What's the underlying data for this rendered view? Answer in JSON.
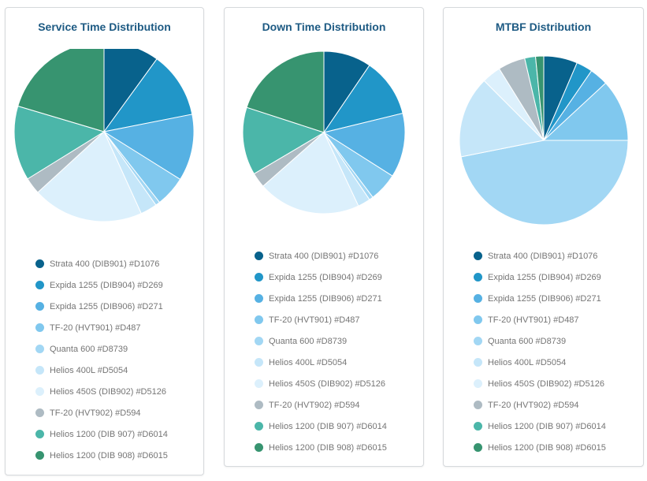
{
  "legend_items": [
    {
      "label": "Strata 400 (DIB901) #D1076",
      "color": "#08628c"
    },
    {
      "label": "Expida 1255 (DIB904) #D269",
      "color": "#2196c8"
    },
    {
      "label": "Expida 1255 (DIB906) #D271",
      "color": "#56b1e3"
    },
    {
      "label": "TF-20 (HVT901) #D487",
      "color": "#80c8ee"
    },
    {
      "label": "Quanta 600 #D8739",
      "color": "#a2d7f4"
    },
    {
      "label": "Helios 400L #D5054",
      "color": "#c5e6f9"
    },
    {
      "label": "Helios 450S (DIB902) #D5126",
      "color": "#dcf0fc"
    },
    {
      "label": "TF-20 (HVT902) #D594",
      "color": "#aebbc3"
    },
    {
      "label": "Helios 1200 (DIB 907) #D6014",
      "color": "#4bb6a9"
    },
    {
      "label": "Helios 1200 (DIB 908) #D6015",
      "color": "#379470"
    }
  ],
  "chart_data": [
    {
      "type": "pie",
      "title": "Service Time Distribution",
      "categories": [
        "Strata 400 (DIB901) #D1076",
        "Expida 1255 (DIB904) #D269",
        "Expida 1255 (DIB906) #D271",
        "TF-20 (HVT901) #D487",
        "Quanta 600 #D8739",
        "Helios 400L #D5054",
        "Helios 450S (DIB902) #D5126",
        "TF-20 (HVT902) #D594",
        "Helios 1200 (DIB 907) #D6014",
        "Helios 1200 (DIB 908) #D6015"
      ],
      "values": [
        10.0,
        11.9,
        12.0,
        5.5,
        0.8,
        3.0,
        20.0,
        3.0,
        13.4,
        20.4
      ],
      "legend": "bottom"
    },
    {
      "type": "pie",
      "title": "Down Time Distribution",
      "categories": [
        "Strata 400 (DIB901) #D1076",
        "Expida 1255 (DIB904) #D269",
        "Expida 1255 (DIB906) #D271",
        "TF-20 (HVT901) #D487",
        "Quanta 600 #D8739",
        "Helios 400L #D5054",
        "Helios 450S (DIB902) #D5126",
        "TF-20 (HVT902) #D594",
        "Helios 1200 (DIB 907) #D6014",
        "Helios 1200 (DIB 908) #D6015"
      ],
      "values": [
        9.5,
        11.7,
        12.8,
        5.7,
        0.8,
        2.5,
        20.5,
        3.0,
        13.5,
        20.0
      ],
      "legend": "bottom"
    },
    {
      "type": "pie",
      "title": "MTBF Distribution",
      "categories": [
        "Strata 400 (DIB901) #D1076",
        "Expida 1255 (DIB904) #D269",
        "Expida 1255 (DIB906) #D271",
        "TF-20 (HVT901) #D487",
        "Quanta 600 #D8739",
        "Helios 400L #D5054",
        "Helios 450S (DIB902) #D5126",
        "TF-20 (HVT902) #D594",
        "Helios 1200 (DIB 907) #D6014",
        "Helios 1200 (DIB 908) #D6015"
      ],
      "values": [
        6.2,
        3.0,
        3.4,
        11.4,
        45.0,
        15.0,
        3.5,
        5.0,
        2.0,
        1.5
      ],
      "legend": "bottom"
    }
  ]
}
